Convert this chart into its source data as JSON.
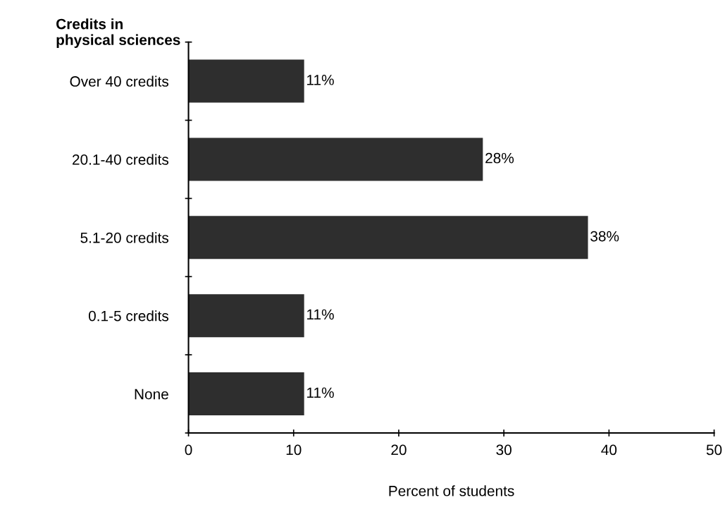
{
  "chart_data": {
    "type": "bar",
    "orientation": "horizontal",
    "categories": [
      "Over 40 credits",
      "20.1-40 credits",
      "5.1-20 credits",
      "0.1-5 credits",
      "None"
    ],
    "values": [
      11,
      28,
      38,
      11,
      11
    ],
    "value_labels": [
      "11%",
      "28%",
      "38%",
      "11%",
      "11%"
    ],
    "color": "#2e2e2e",
    "xlim": [
      0,
      50
    ],
    "xticks": [
      0,
      10,
      20,
      30,
      40,
      50
    ],
    "xlabel": "Percent of students",
    "ylabel": "Credits in\nphysical sciences",
    "grid": false
  }
}
